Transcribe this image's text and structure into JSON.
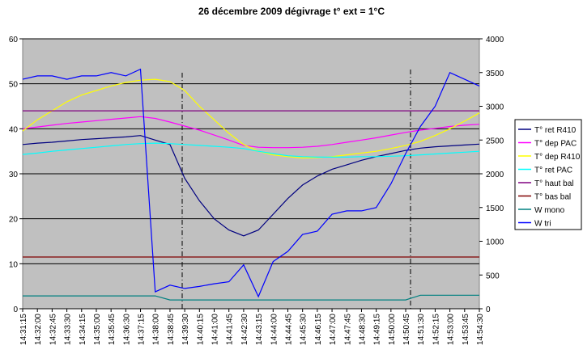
{
  "chart_data": {
    "type": "line",
    "title": "26 décembre 2009  dégivrage   t° ext = 1°C",
    "categories": [
      "14:31:15",
      "14:32:00",
      "14:32:45",
      "14:33:30",
      "14:34:15",
      "14:35:00",
      "14:35:45",
      "14:36:30",
      "14:37:15",
      "14:38:00",
      "14:38:45",
      "14:39:30",
      "14:40:15",
      "14:41:00",
      "14:41:45",
      "14:42:30",
      "14:43:15",
      "14:44:00",
      "14:44:45",
      "14:45:30",
      "14:46:15",
      "14:47:00",
      "14:47:45",
      "14:48:30",
      "14:49:15",
      "14:50:00",
      "14:50:45",
      "14:51:30",
      "14:52:15",
      "14:53:00",
      "14:53:45",
      "14:54:30"
    ],
    "ylim": [
      0,
      60
    ],
    "yticks": [
      0,
      10,
      20,
      30,
      40,
      50,
      60
    ],
    "y2lim": [
      0,
      4000
    ],
    "y2ticks": [
      0,
      500,
      1000,
      1500,
      2000,
      2500,
      3000,
      3500,
      4000
    ],
    "grid": true,
    "legend": "right",
    "series": [
      {
        "name": "T° ret R410",
        "color": "#000080",
        "values": [
          36.5,
          36.8,
          37,
          37.3,
          37.6,
          37.8,
          38,
          38.2,
          38.5,
          37.5,
          36.5,
          29,
          24,
          20,
          17.5,
          16.2,
          17.5,
          21,
          24.5,
          27.5,
          29.5,
          31,
          32,
          33,
          33.8,
          34.5,
          35.2,
          35.7,
          36,
          36.2,
          36.4,
          36.6
        ]
      },
      {
        "name": "T° dep PAC",
        "color": "#ff00ff",
        "values": [
          40,
          40.4,
          40.8,
          41.2,
          41.5,
          41.8,
          42.1,
          42.4,
          42.7,
          42.3,
          41.5,
          40.6,
          39.7,
          38.6,
          37.5,
          36.3,
          35.9,
          35.8,
          35.8,
          35.9,
          36.1,
          36.5,
          37,
          37.5,
          38,
          38.6,
          39.2,
          39.7,
          40.1,
          40.5,
          40.8,
          41
        ]
      },
      {
        "name": "T° dep R410",
        "color": "#ffff00",
        "values": [
          39.5,
          42,
          44,
          46,
          47.5,
          48.5,
          49.5,
          50.3,
          50.8,
          51,
          50.5,
          48.5,
          45,
          42,
          39,
          36.5,
          35,
          34.2,
          33.8,
          33.5,
          33.6,
          33.8,
          34.2,
          34.6,
          35,
          35.6,
          36.3,
          37.2,
          38.5,
          40,
          41.7,
          43.5
        ]
      },
      {
        "name": "T° ret PAC",
        "color": "#00ffff",
        "values": [
          34.3,
          34.6,
          35,
          35.3,
          35.6,
          35.9,
          36.2,
          36.5,
          36.7,
          36.8,
          36.7,
          36.5,
          36.3,
          36.1,
          35.9,
          35.6,
          35,
          34.5,
          34,
          33.8,
          33.7,
          33.7,
          33.7,
          33.8,
          33.8,
          33.9,
          34,
          34.2,
          34.4,
          34.6,
          34.8,
          35
        ]
      },
      {
        "name": "T° haut bal",
        "color": "#800080",
        "values": [
          44,
          44,
          44,
          44,
          44,
          44,
          44,
          44,
          44,
          44,
          44,
          44,
          44,
          44,
          44,
          44,
          44,
          44,
          44,
          44,
          44,
          44,
          44,
          44,
          44,
          44,
          44,
          44,
          44,
          44,
          44,
          44
        ]
      },
      {
        "name": "T° bas bal",
        "color": "#800000",
        "values": [
          11.5,
          11.5,
          11.5,
          11.5,
          11.5,
          11.5,
          11.5,
          11.5,
          11.5,
          11.5,
          11.5,
          11.5,
          11.5,
          11.5,
          11.5,
          11.5,
          11.5,
          11.5,
          11.5,
          11.5,
          11.5,
          11.5,
          11.5,
          11.5,
          11.5,
          11.5,
          11.5,
          11.5,
          11.5,
          11.5,
          11.5,
          11.5
        ]
      },
      {
        "name": "W mono",
        "color": "#008080",
        "axis": "y2",
        "values": [
          190,
          190,
          190,
          190,
          190,
          190,
          190,
          190,
          190,
          190,
          130,
          130,
          130,
          130,
          130,
          130,
          130,
          130,
          130,
          130,
          130,
          130,
          130,
          130,
          130,
          130,
          130,
          200,
          200,
          200,
          200,
          200
        ]
      },
      {
        "name": "W tri",
        "color": "#0000ff",
        "axis": "y2",
        "values": [
          3400,
          3450,
          3450,
          3400,
          3450,
          3450,
          3500,
          3450,
          3550,
          250,
          350,
          300,
          330,
          370,
          400,
          650,
          180,
          700,
          850,
          1100,
          1150,
          1400,
          1450,
          1450,
          1500,
          1850,
          2300,
          2700,
          3000,
          3500,
          3400,
          3300
        ]
      }
    ]
  }
}
